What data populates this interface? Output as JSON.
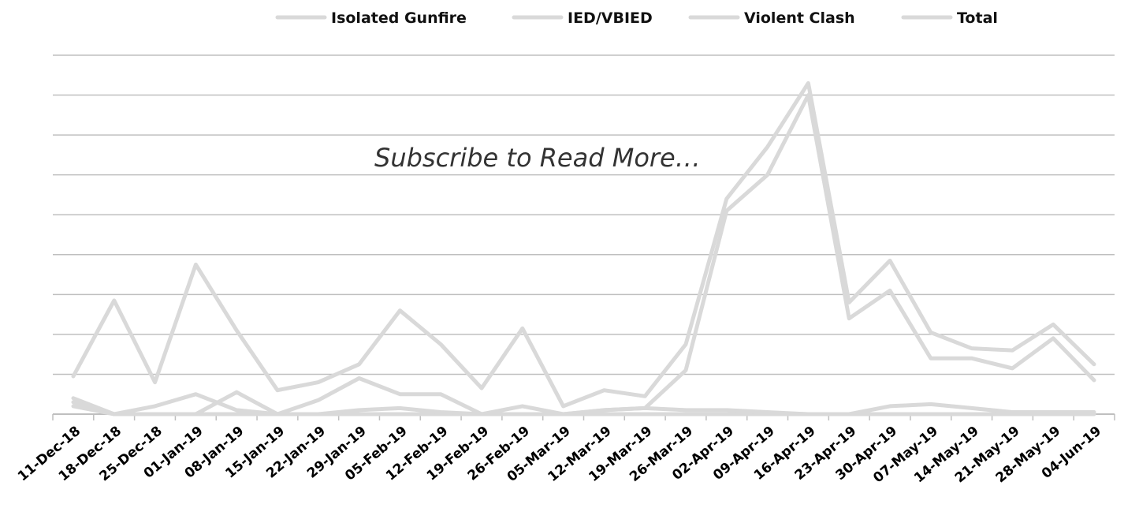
{
  "chart_data": {
    "type": "line",
    "overlay_text": "Subscribe to Read More…",
    "legend_position": "top",
    "grid": true,
    "ylim": [
      0,
      9
    ],
    "x": [
      "11-Dec-18",
      "18-Dec-18",
      "25-Dec-18",
      "01-Jan-19",
      "08-Jan-19",
      "15-Jan-19",
      "22-Jan-19",
      "29-Jan-19",
      "05-Feb-19",
      "12-Feb-19",
      "19-Feb-19",
      "26-Feb-19",
      "05-Mar-19",
      "12-Mar-19",
      "19-Mar-19",
      "26-Mar-19",
      "02-Apr-19",
      "09-Apr-19",
      "16-Apr-19",
      "23-Apr-19",
      "30-Apr-19",
      "07-May-19",
      "14-May-19",
      "21-May-19",
      "28-May-19",
      "04-Jun-19"
    ],
    "series": [
      {
        "name": "Isolated Gunfire",
        "color": "#d9d9d9",
        "values": [
          0.4,
          0,
          0.2,
          0.5,
          0.1,
          0,
          0.35,
          0.9,
          0.5,
          0.5,
          0,
          0.2,
          0,
          0.1,
          0.15,
          1.1,
          5.1,
          6.0,
          8.0,
          2.4,
          3.1,
          1.4,
          1.4,
          1.15,
          1.9,
          0.85
        ]
      },
      {
        "name": "IED/VBIED",
        "color": "#d9d9d9",
        "values": [
          0.3,
          0,
          0,
          0,
          0.55,
          0,
          0,
          0,
          0,
          0,
          0,
          0,
          0,
          0,
          0,
          0,
          0,
          0,
          0,
          0,
          0,
          0,
          0,
          0,
          0,
          0
        ]
      },
      {
        "name": "Violent Clash",
        "color": "#d9d9d9",
        "values": [
          0.2,
          0,
          0,
          0,
          0,
          0,
          0,
          0.1,
          0.15,
          0.05,
          0,
          0,
          0,
          0.1,
          0.15,
          0.1,
          0.1,
          0.05,
          0,
          0,
          0.2,
          0.25,
          0.15,
          0.05,
          0.05,
          0.05
        ]
      },
      {
        "name": "Total",
        "color": "#d9d9d9",
        "values": [
          0.95,
          2.85,
          0.8,
          3.75,
          2.1,
          0.6,
          0.8,
          1.25,
          2.6,
          1.75,
          0.65,
          2.15,
          0.2,
          0.6,
          0.45,
          1.75,
          5.4,
          6.7,
          8.3,
          2.8,
          3.85,
          2.05,
          1.65,
          1.6,
          2.25,
          1.25
        ]
      }
    ]
  }
}
